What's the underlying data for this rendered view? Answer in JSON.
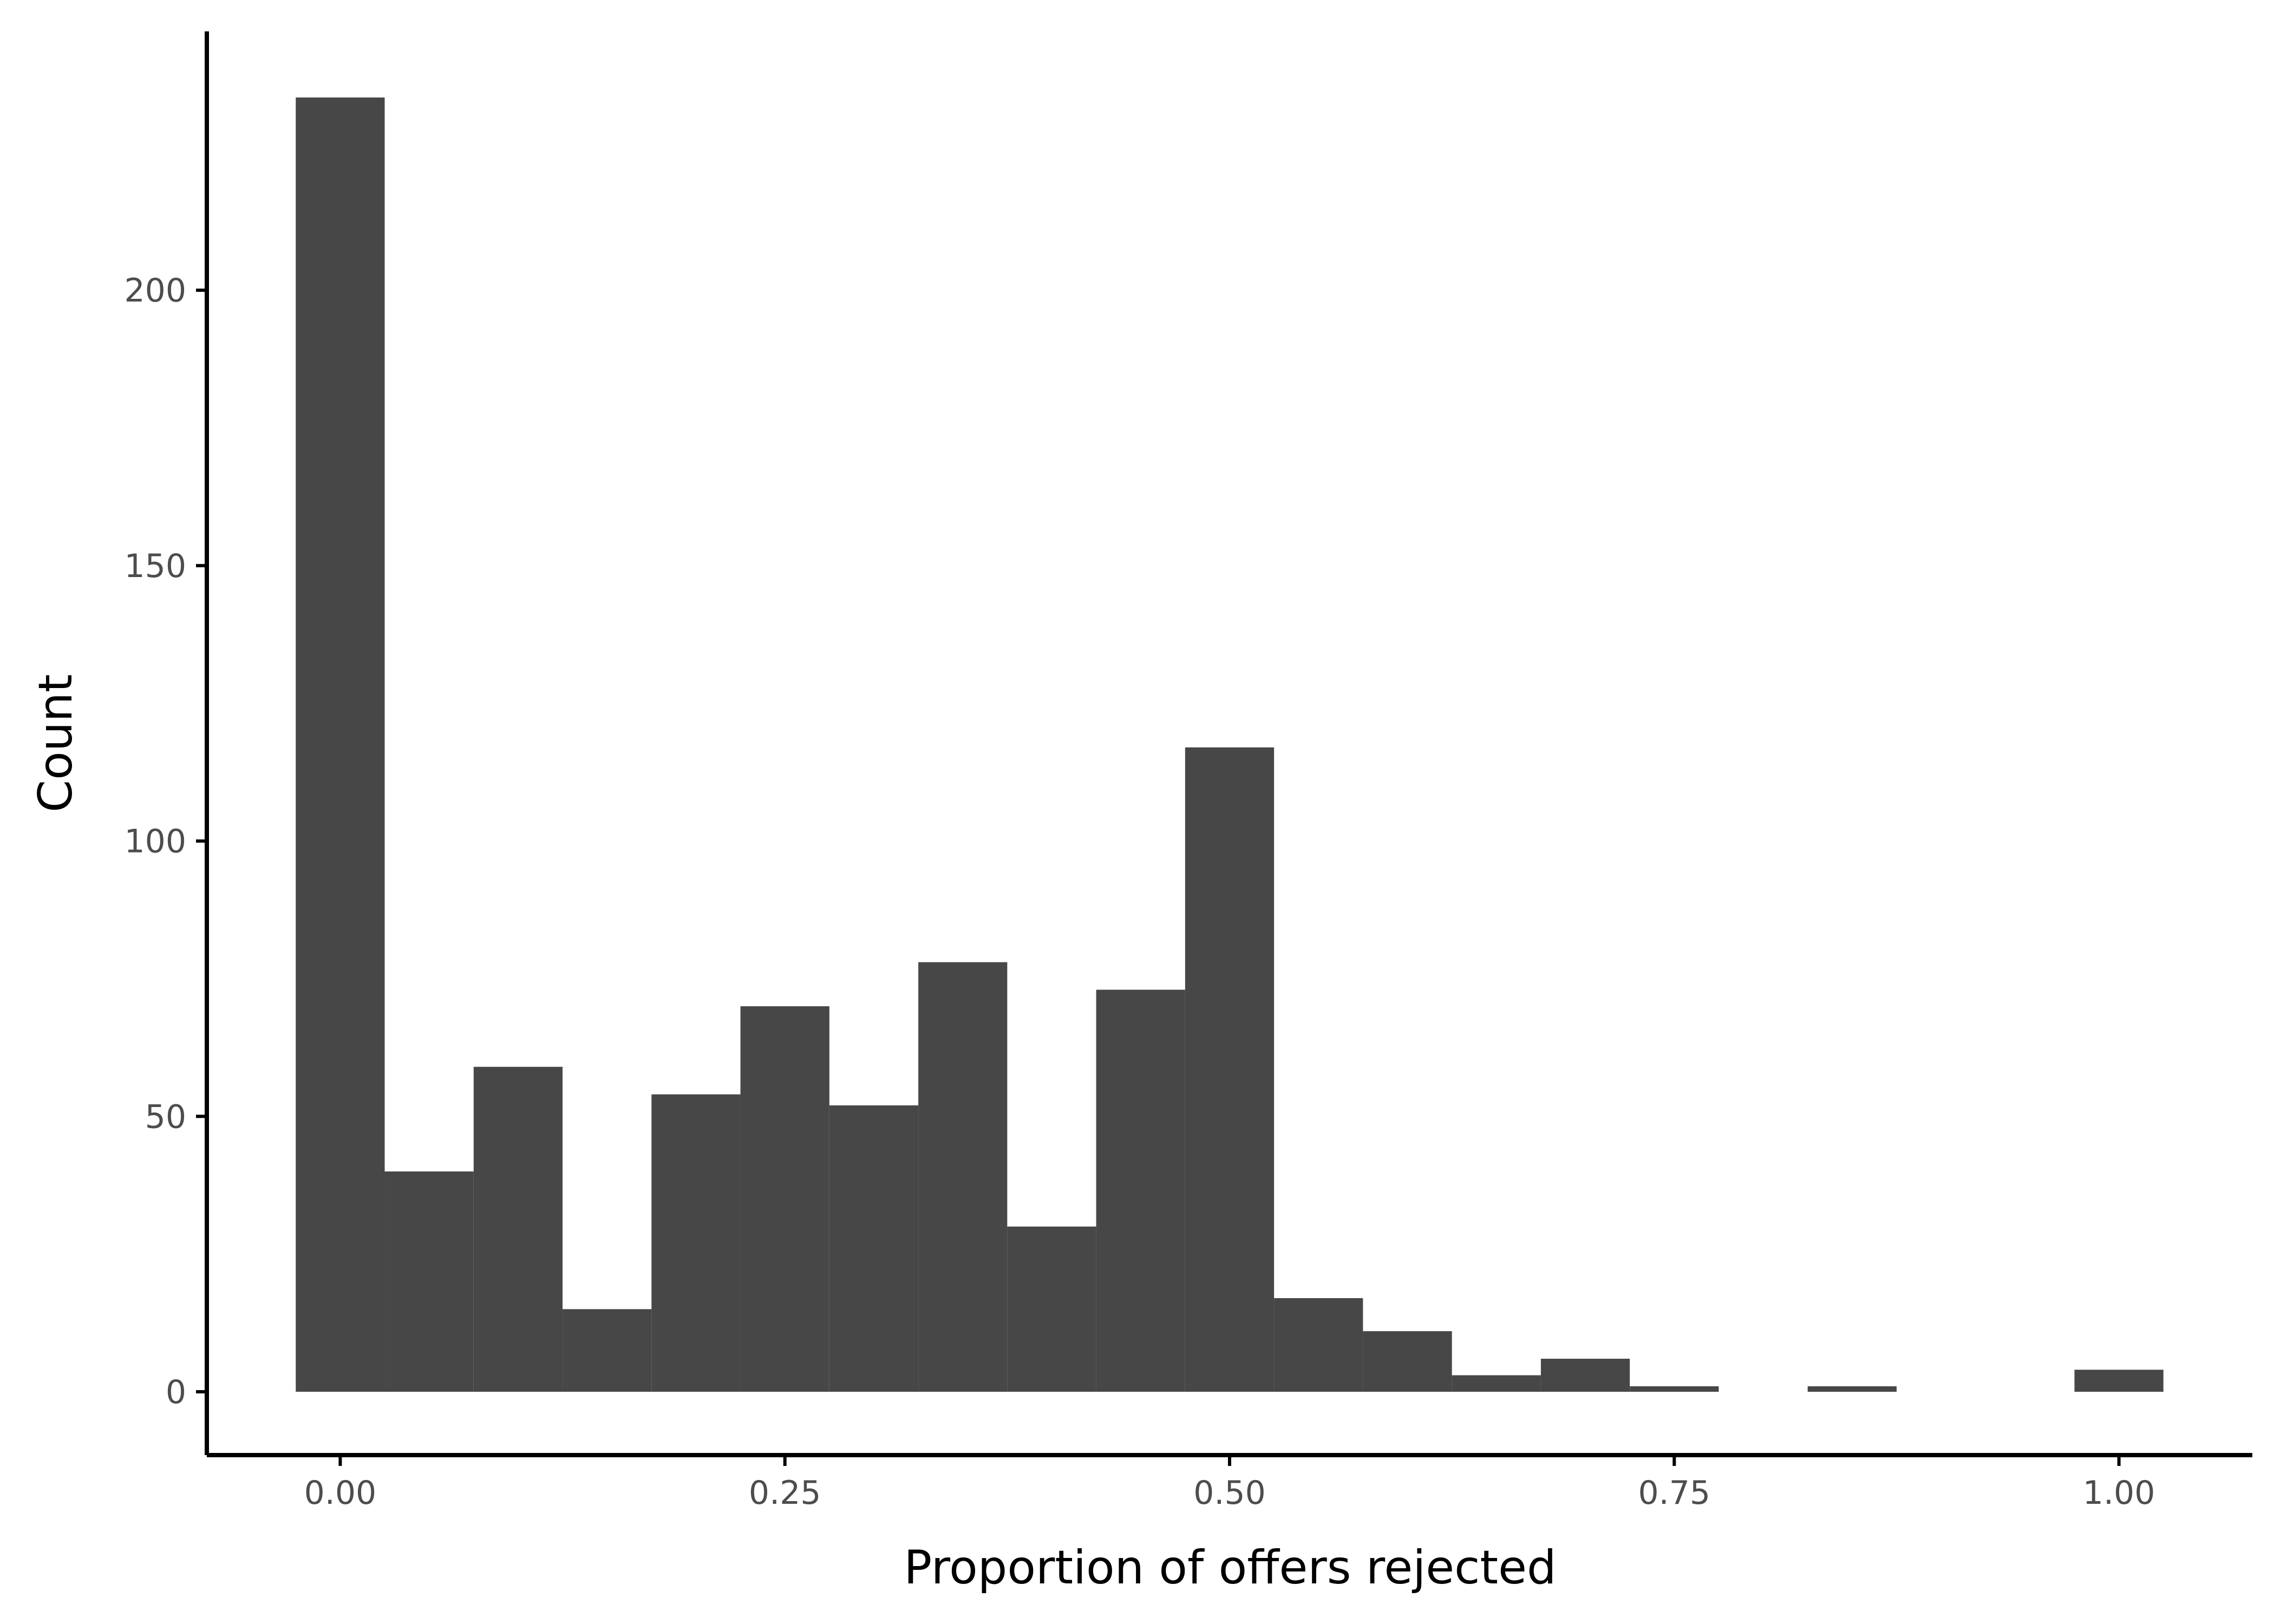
{
  "chart_data": {
    "type": "bar",
    "title": "",
    "xlabel": "Proportion of offers rejected",
    "ylabel": "Count",
    "bin_width": 0.05,
    "x": [
      0.0,
      0.05,
      0.1,
      0.15,
      0.2,
      0.25,
      0.3,
      0.35,
      0.4,
      0.45,
      0.5,
      0.55,
      0.6,
      0.65,
      0.7,
      0.75,
      0.8,
      0.85,
      0.9,
      0.95,
      1.0
    ],
    "values": [
      235,
      40,
      59,
      15,
      54,
      70,
      52,
      78,
      30,
      73,
      117,
      17,
      11,
      3,
      6,
      1,
      0,
      1,
      0,
      0,
      4
    ],
    "xlim": [
      -0.075,
      1.075
    ],
    "ylim": [
      -11.5,
      247
    ],
    "xticks": [
      0.0,
      0.25,
      0.5,
      0.75,
      1.0
    ],
    "xtick_labels": [
      "0.00",
      "0.25",
      "0.50",
      "0.75",
      "1.00"
    ],
    "yticks": [
      0,
      50,
      100,
      150,
      200
    ],
    "ytick_labels": [
      "0",
      "50",
      "100",
      "150",
      "200"
    ],
    "bar_color": "#474747",
    "grid": false,
    "legend": "none"
  }
}
